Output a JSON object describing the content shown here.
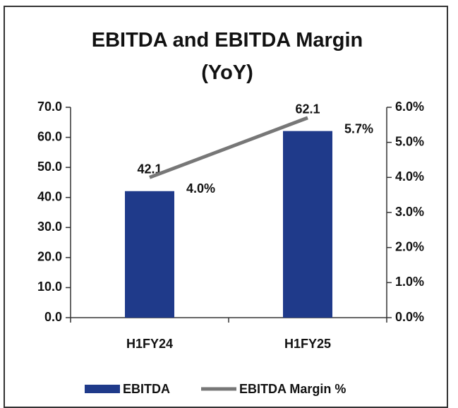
{
  "chart_data": {
    "type": "bar_line",
    "title": "EBITDA and EBITDA Margin (YoY)",
    "categories": [
      "H1FY24",
      "H1FY25"
    ],
    "series": [
      {
        "name": "EBITDA",
        "type": "bar",
        "color": "#1f3a8a",
        "values": [
          42.1,
          62.1
        ]
      },
      {
        "name": "EBITDA Margin %",
        "type": "line",
        "axis": "y2",
        "color": "#777777",
        "values": [
          4.0,
          5.7
        ],
        "value_labels": [
          "4.0%",
          "5.7%"
        ]
      }
    ],
    "ylim": [
      0,
      70
    ],
    "yticks": [
      {
        "value": 0,
        "label": "0.0"
      },
      {
        "value": 10,
        "label": "10.0"
      },
      {
        "value": 20,
        "label": "20.0"
      },
      {
        "value": 30,
        "label": "30.0"
      },
      {
        "value": 40,
        "label": "40.0"
      },
      {
        "value": 50,
        "label": "50.0"
      },
      {
        "value": 60,
        "label": "60.0"
      },
      {
        "value": 70,
        "label": "70.0"
      }
    ],
    "y2lim": [
      0,
      6
    ],
    "y2ticks": [
      {
        "value": 0,
        "label": "0.0%"
      },
      {
        "value": 1,
        "label": "1.0%"
      },
      {
        "value": 2,
        "label": "2.0%"
      },
      {
        "value": 3,
        "label": "3.0%"
      },
      {
        "value": 4,
        "label": "4.0%"
      },
      {
        "value": 5,
        "label": "5.0%"
      },
      {
        "value": 6,
        "label": "6.0%"
      }
    ],
    "legend": "bottom"
  }
}
